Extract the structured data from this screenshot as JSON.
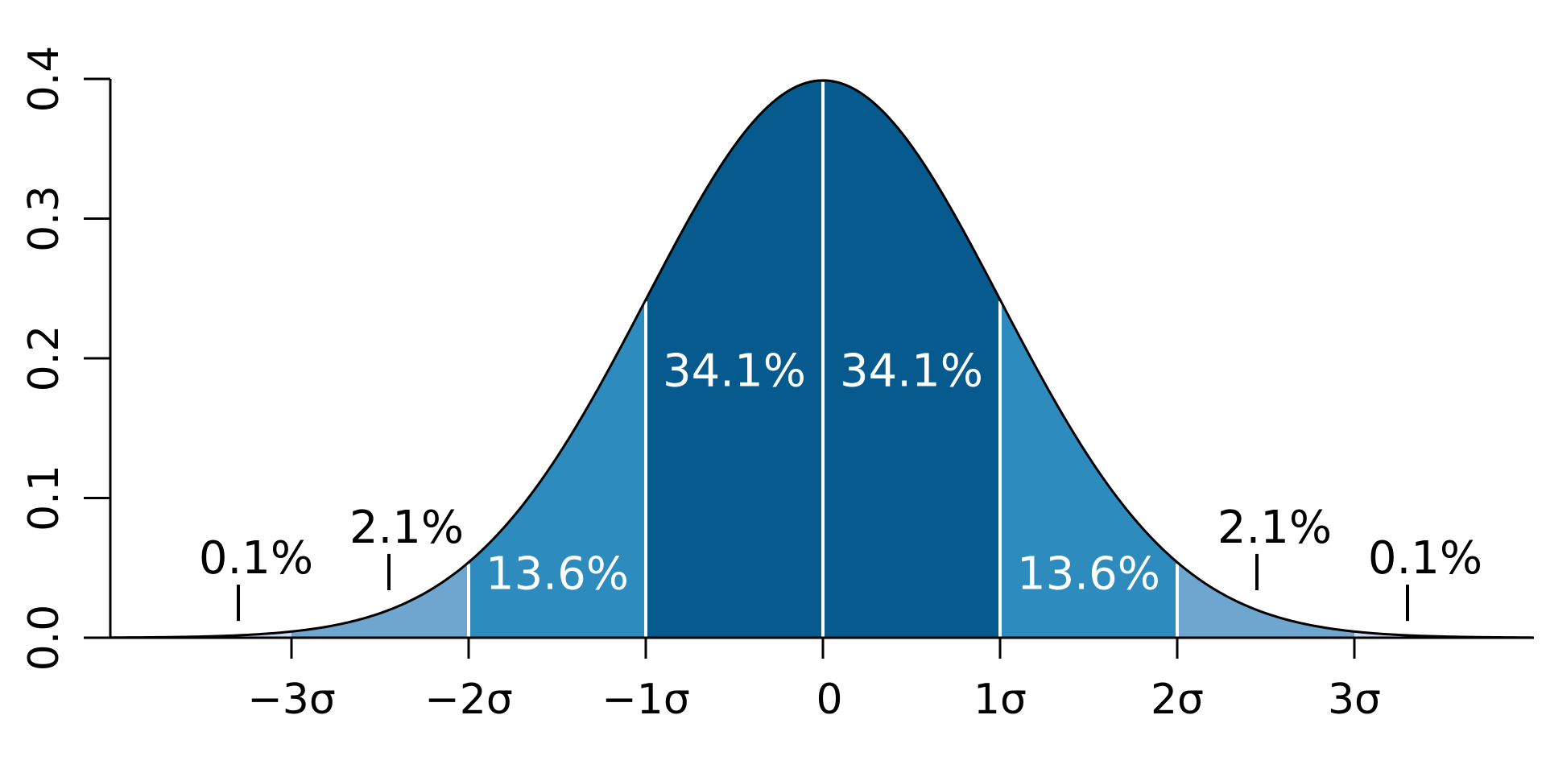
{
  "chart_data": {
    "type": "area",
    "title": "",
    "xlabel": "",
    "ylabel": "",
    "distribution": "standard-normal",
    "xlim": [
      -4,
      4
    ],
    "ylim": [
      0,
      0.4
    ],
    "grid": false,
    "x_ticks": [
      {
        "value": -3,
        "label": "−3σ"
      },
      {
        "value": -2,
        "label": "−2σ"
      },
      {
        "value": -1,
        "label": "−1σ"
      },
      {
        "value": 0,
        "label": "0"
      },
      {
        "value": 1,
        "label": "1σ"
      },
      {
        "value": 2,
        "label": "2σ"
      },
      {
        "value": 3,
        "label": "3σ"
      }
    ],
    "y_ticks": [
      {
        "value": 0.0,
        "label": "0.0"
      },
      {
        "value": 0.1,
        "label": "0.1"
      },
      {
        "value": 0.2,
        "label": "0.2"
      },
      {
        "value": 0.3,
        "label": "0.3"
      },
      {
        "value": 0.4,
        "label": "0.4"
      }
    ],
    "segments": [
      {
        "from": -4,
        "to": -3,
        "label": "0.1%",
        "value": 0.1,
        "color": "#c6dbef",
        "label_color": "#000000",
        "leader": true,
        "label_x": -3.3,
        "label_y": 0.012
      },
      {
        "from": -3,
        "to": -2,
        "label": "2.1%",
        "value": 2.1,
        "color": "#6ea6d0",
        "label_color": "#000000",
        "leader": true,
        "label_x": -2.45,
        "label_y": 0.034
      },
      {
        "from": -2,
        "to": -1,
        "label": "13.6%",
        "value": 13.6,
        "color": "#2d8bbe",
        "label_color": "#ffffff",
        "leader": false,
        "label_x": -1.5,
        "label_y": 0.035
      },
      {
        "from": -1,
        "to": 0,
        "label": "34.1%",
        "value": 34.1,
        "color": "#075a8e",
        "label_color": "#ffffff",
        "leader": false,
        "label_x": -0.5,
        "label_y": 0.18
      },
      {
        "from": 0,
        "to": 1,
        "label": "34.1%",
        "value": 34.1,
        "color": "#075a8e",
        "label_color": "#ffffff",
        "leader": false,
        "label_x": 0.5,
        "label_y": 0.18
      },
      {
        "from": 1,
        "to": 2,
        "label": "13.6%",
        "value": 13.6,
        "color": "#2d8bbe",
        "label_color": "#ffffff",
        "leader": false,
        "label_x": 1.5,
        "label_y": 0.035
      },
      {
        "from": 2,
        "to": 3,
        "label": "2.1%",
        "value": 2.1,
        "color": "#6ea6d0",
        "label_color": "#000000",
        "leader": true,
        "label_x": 2.45,
        "label_y": 0.034
      },
      {
        "from": 3,
        "to": 4,
        "label": "0.1%",
        "value": 0.1,
        "color": "#c6dbef",
        "label_color": "#000000",
        "leader": true,
        "label_x": 3.3,
        "label_y": 0.012
      }
    ],
    "boundaries": [
      -2,
      -1,
      0,
      1,
      2
    ],
    "curve_color": "#000000",
    "boundary_color": "#ffffff"
  }
}
